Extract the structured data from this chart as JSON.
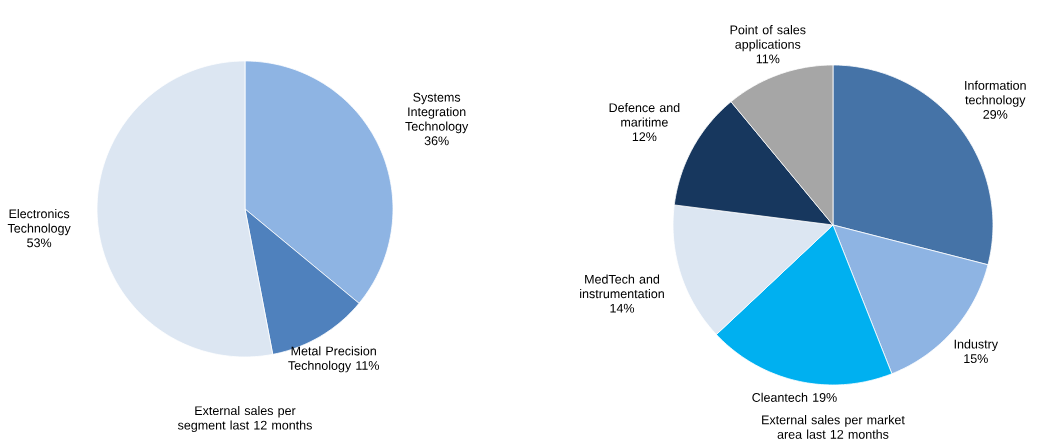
{
  "chart_data": [
    {
      "type": "pie",
      "title": "External sales per segment last 12 months",
      "categories": [
        "Systems Integration Technology",
        "Metal Precision Technology",
        "Electronics Technology"
      ],
      "values": [
        36,
        11,
        53
      ],
      "colors": [
        "#8eb4e3",
        "#4f81bd",
        "#dce6f2"
      ],
      "value_labels": [
        "36%",
        "11%",
        "53%"
      ]
    },
    {
      "type": "pie",
      "title": "External sales per market area last 12 months",
      "categories": [
        "Information technology",
        "Industry",
        "Cleantech",
        "MedTech and instrumentation",
        "Defence and maritime",
        "Point of sales applications"
      ],
      "values": [
        29,
        15,
        19,
        14,
        12,
        11
      ],
      "colors": [
        "#4573a7",
        "#8eb4e3",
        "#00b0f0",
        "#dce6f2",
        "#17375e",
        "#a6a6a6"
      ],
      "value_labels": [
        "29%",
        "15%",
        "19%",
        "14%",
        "12%",
        "11%"
      ]
    }
  ]
}
